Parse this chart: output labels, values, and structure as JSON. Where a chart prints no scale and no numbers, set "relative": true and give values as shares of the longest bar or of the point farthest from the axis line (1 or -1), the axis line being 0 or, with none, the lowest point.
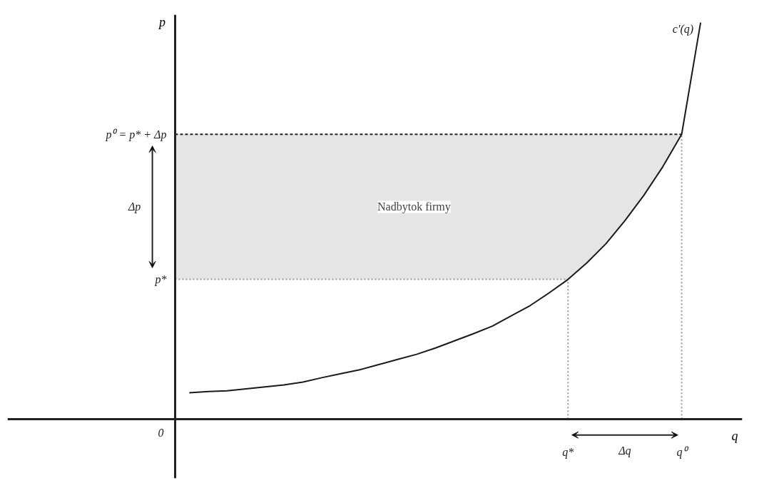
{
  "chart_data": {
    "type": "line",
    "xlabel": "q",
    "ylabel": "p",
    "relative": true,
    "categories": [
      null,
      null,
      null,
      null,
      null,
      null,
      null,
      null,
      null,
      null,
      null,
      null,
      null,
      null,
      null,
      null,
      null,
      null,
      null,
      null,
      "q*",
      null,
      null,
      null,
      null,
      null,
      "q⁰",
      null
    ],
    "grid": false,
    "line_style": "solid",
    "series": [
      {
        "name": "c′(q)",
        "color": "#1a1a1a",
        "values": [
          0.066,
          0.069,
          0.071,
          0.076,
          0.081,
          0.086,
          0.093,
          0.104,
          0.114,
          0.124,
          0.137,
          0.15,
          0.163,
          0.179,
          0.197,
          0.215,
          0.234,
          0.26,
          0.286,
          0.318,
          0.352,
          0.394,
          0.442,
          0.5,
          0.564,
          0.636,
          0.718,
          1.0
        ]
      }
    ],
    "bands": [
      {
        "axis": "y",
        "from": 0.352,
        "to": 0.718,
        "label": "Nadbytok firmy",
        "color": "#e4e5e7"
      }
    ],
    "ref_lines": [
      {
        "axis": "y",
        "value": 0.718,
        "label": "p⁰ = p* + Δp",
        "color": "#222222",
        "line_style": "dashed"
      },
      {
        "axis": "y",
        "value": 0.352,
        "label": "p*",
        "color": "#999999",
        "line_style": "dotted"
      },
      {
        "axis": "x",
        "value": "q*",
        "color": "#999999",
        "line_style": "dotted"
      },
      {
        "axis": "x",
        "value": "q⁰",
        "color": "#999999",
        "line_style": "dotted"
      }
    ],
    "annotations": [
      "0",
      "Δp",
      "Δq"
    ]
  }
}
